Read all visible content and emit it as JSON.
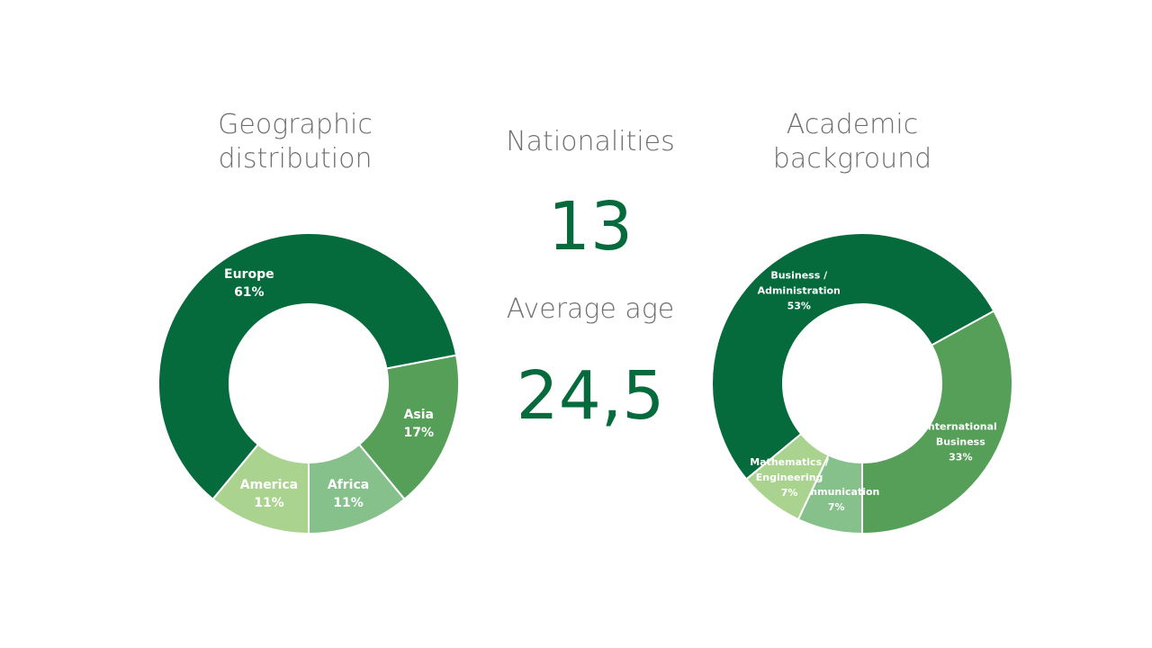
{
  "colors": {
    "dark_green": "#066b3c",
    "mid_green": "#559f58",
    "light_green": "#86c08a",
    "pale_green": "#abd390",
    "title_gray": "#6f6f6f"
  },
  "stats": {
    "nationalities_label": "Nationalities",
    "nationalities_value": "13",
    "average_age_label": "Average age",
    "average_age_value": "24,5"
  },
  "chart_data": [
    {
      "type": "pie",
      "title_lines": [
        "Geographic",
        "distribution"
      ],
      "categories": [
        "Europe",
        "Asia",
        "Africa",
        "America"
      ],
      "values": [
        61,
        17,
        11,
        11
      ],
      "value_labels": [
        "61%",
        "17%",
        "11%",
        "11%"
      ],
      "legend": "none",
      "donut": true
    },
    {
      "type": "pie",
      "title_lines": [
        "Academic",
        "background"
      ],
      "categories": [
        "Business / Administration",
        "International Business",
        "Communication",
        "Mathematics / Engineering"
      ],
      "label_lines": [
        [
          "Business /",
          "Administration"
        ],
        [
          "International",
          "Business"
        ],
        [
          "Communication"
        ],
        [
          "Mathematics /",
          "Engineering"
        ]
      ],
      "values": [
        53,
        33,
        7,
        7
      ],
      "value_labels": [
        "53%",
        "33%",
        "7%",
        "7%"
      ],
      "legend": "none",
      "donut": true
    }
  ]
}
